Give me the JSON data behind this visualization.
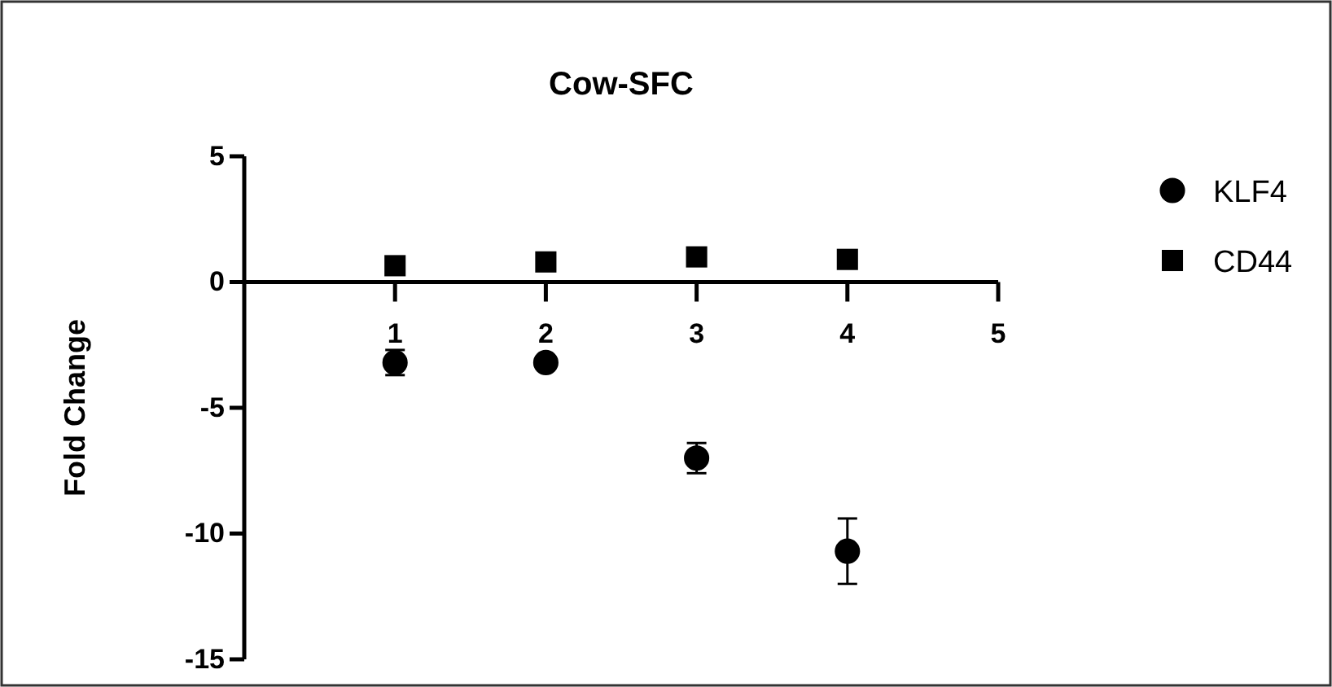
{
  "chart_data": {
    "type": "scatter",
    "title": "Cow-SFC",
    "ylabel": "Fold Change",
    "x": [
      1,
      2,
      3,
      4
    ],
    "xlim": [
      0,
      5
    ],
    "xticks": [
      1,
      2,
      3,
      4,
      5
    ],
    "ylim": [
      -15,
      5
    ],
    "yticks": [
      -15,
      -10,
      -5,
      0,
      5
    ],
    "series": [
      {
        "name": "KLF4",
        "color": "#000000",
        "marker": "circle",
        "values": [
          -3.2,
          -3.2,
          -7.0,
          -10.7
        ],
        "errors": [
          0.5,
          null,
          0.6,
          1.3
        ]
      },
      {
        "name": "CD44",
        "color": "#000000",
        "marker": "square",
        "values": [
          0.65,
          0.8,
          1.0,
          0.9
        ]
      }
    ],
    "legend": "top right",
    "grid": false
  }
}
